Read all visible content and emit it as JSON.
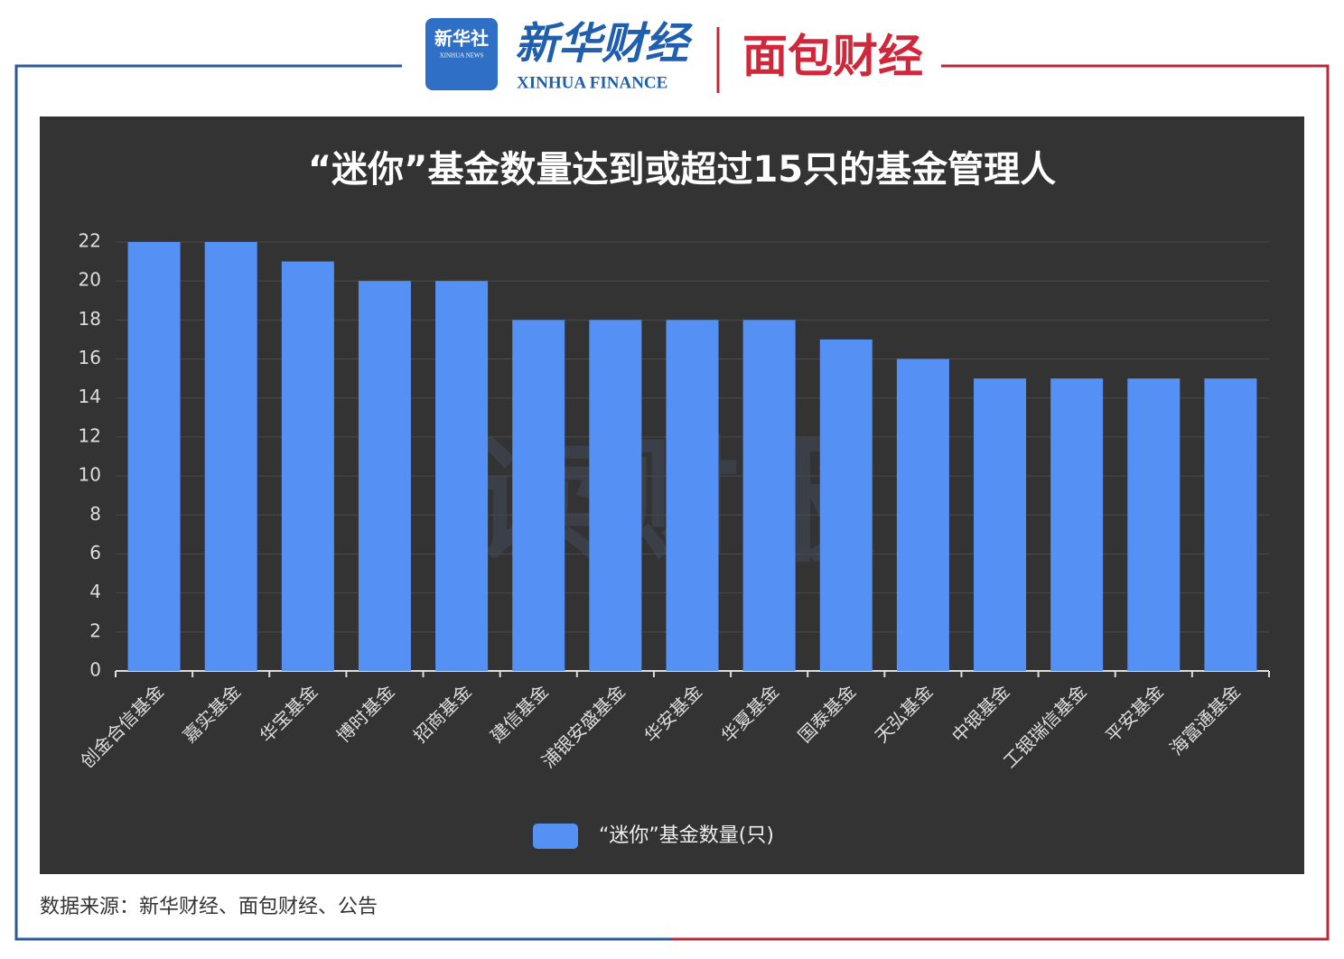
{
  "header": {
    "xinhua_news": "新华社",
    "xinhua_news_en": "XINHUA NEWS",
    "xinhua_finance": "新华财经",
    "xinhua_finance_en": "XINHUA FINANCE",
    "mianbao": "面包财经"
  },
  "chart_data": {
    "type": "bar",
    "title": "“迷你”基金数量达到或超过15只的基金管理人",
    "categories": [
      "创金合信基金",
      "嘉实基金",
      "华宝基金",
      "博时基金",
      "招商基金",
      "建信基金",
      "浦银安盛基金",
      "华安基金",
      "华夏基金",
      "国泰基金",
      "天弘基金",
      "中银基金",
      "工银瑞信基金",
      "平安基金",
      "海富通基金"
    ],
    "series": [
      {
        "name": "“迷你”基金数量(只)",
        "color": "#5591f5",
        "values": [
          22,
          22,
          21,
          20,
          20,
          18,
          18,
          18,
          18,
          17,
          16,
          15,
          15,
          15,
          15
        ]
      }
    ],
    "ylim": [
      0,
      22
    ],
    "yticks": [
      0,
      2,
      4,
      6,
      8,
      10,
      12,
      14,
      16,
      18,
      20,
      22
    ],
    "grid": true,
    "legend": "bottom",
    "watermark": "读财报"
  },
  "footer": {
    "source": "数据来源：新华财经、面包财经、公告"
  }
}
